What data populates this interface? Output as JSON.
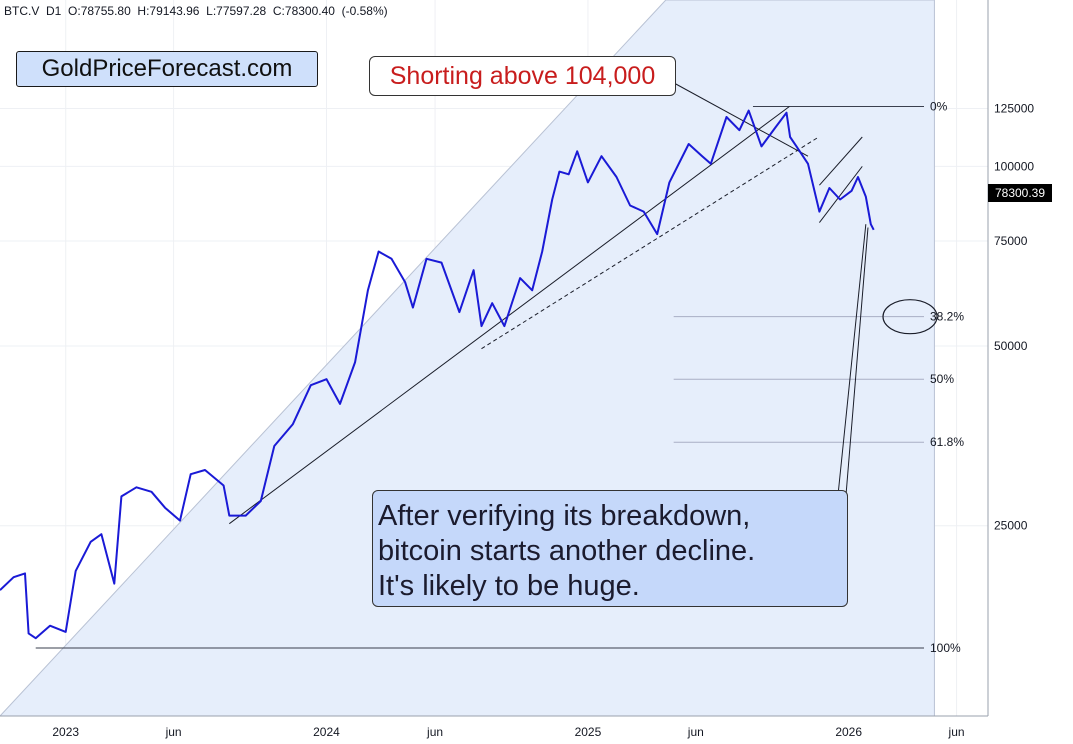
{
  "header": {
    "symbol": "BTC.V",
    "interval": "D1",
    "open": "O:78755.80",
    "high": "H:79143.96",
    "low": "L:77597.28",
    "close": "C:78300.40",
    "change": "(-0.58%)"
  },
  "brand": "GoldPriceForecast.com",
  "callout_red": "Shorting above 104,000",
  "callout_blue": {
    "line1": "After verifying its breakdown,",
    "line2": "bitcoin starts another decline.",
    "line3": "It's likely to be huge."
  },
  "price_tag": "78300.39",
  "colors": {
    "price_line": "#1a1ad6",
    "fill": "#e6eefb",
    "callout_blue_bg": "#c5d8fa",
    "callout_red_text": "#c81d1d",
    "fib_line": "#a9aec4"
  },
  "chart_data": {
    "type": "line",
    "y_scale": "log",
    "ylim": [
      12000,
      190000
    ],
    "xlim": [
      "2022-10-01",
      "2026-07-15"
    ],
    "y_ticks": [
      25000,
      50000,
      75000,
      100000,
      125000
    ],
    "y_tick_labels": [
      "25000",
      "50000",
      "75000",
      "100000",
      "125000"
    ],
    "x_ticks": [
      "2023-01-01",
      "2023-06-01",
      "2024-01-01",
      "2024-06-01",
      "2025-01-01",
      "2025-06-01",
      "2026-01-01",
      "2026-06-01"
    ],
    "x_tick_labels": [
      "2023",
      "jun",
      "2024",
      "jun",
      "2025",
      "jun",
      "2026",
      "jun"
    ],
    "fib_levels": [
      {
        "label": "0%",
        "value": 126000
      },
      {
        "label": "38.2%",
        "value": 56000
      },
      {
        "label": "50%",
        "value": 44000
      },
      {
        "label": "61.8%",
        "value": 34500
      },
      {
        "label": "100%",
        "value": 15600
      }
    ],
    "series": [
      {
        "x": [
          "2022-10-01",
          "2022-10-20",
          "2022-11-05",
          "2022-11-10",
          "2022-11-20",
          "2022-12-10",
          "2023-01-01",
          "2023-01-15",
          "2023-02-05",
          "2023-02-20",
          "2023-03-10",
          "2023-03-20",
          "2023-04-10",
          "2023-05-01",
          "2023-05-20",
          "2023-06-10",
          "2023-06-25",
          "2023-07-15",
          "2023-08-10",
          "2023-08-18",
          "2023-09-10",
          "2023-10-01",
          "2023-10-20",
          "2023-11-15",
          "2023-12-10",
          "2024-01-01",
          "2024-01-20",
          "2024-02-10",
          "2024-02-28",
          "2024-03-14",
          "2024-04-01",
          "2024-04-20",
          "2024-05-01",
          "2024-05-20",
          "2024-06-10",
          "2024-07-05",
          "2024-07-25",
          "2024-08-05",
          "2024-08-20",
          "2024-09-06",
          "2024-09-28",
          "2024-10-15",
          "2024-10-29",
          "2024-11-12",
          "2024-11-22",
          "2024-12-05",
          "2024-12-17",
          "2025-01-01",
          "2025-01-20",
          "2025-02-10",
          "2025-03-01",
          "2025-03-20",
          "2025-04-08",
          "2025-04-25",
          "2025-05-22",
          "2025-06-10",
          "2025-06-22",
          "2025-07-14",
          "2025-08-01",
          "2025-08-14",
          "2025-09-01",
          "2025-09-20",
          "2025-10-06",
          "2025-10-11",
          "2025-10-20",
          "2025-11-05",
          "2025-11-21",
          "2025-12-05",
          "2025-12-20",
          "2026-01-05",
          "2026-01-14",
          "2026-01-25",
          "2026-02-01",
          "2026-02-05"
        ],
        "y": [
          19500,
          20500,
          20800,
          16500,
          16200,
          17000,
          16600,
          21000,
          23500,
          24200,
          20000,
          28000,
          29000,
          28500,
          26800,
          25500,
          30500,
          31000,
          29200,
          26000,
          26000,
          27500,
          34000,
          37000,
          43000,
          44000,
          40000,
          47000,
          62000,
          72000,
          70000,
          64000,
          58000,
          70000,
          69000,
          57000,
          67000,
          54000,
          59000,
          54000,
          65000,
          62000,
          72000,
          88000,
          98000,
          97000,
          106000,
          94000,
          104000,
          96000,
          86000,
          84000,
          77000,
          94000,
          109000,
          104000,
          101000,
          121000,
          115000,
          124000,
          108000,
          116000,
          123000,
          112000,
          108000,
          101000,
          84000,
          92000,
          88000,
          91000,
          96000,
          89000,
          80000,
          78300
        ]
      }
    ]
  }
}
